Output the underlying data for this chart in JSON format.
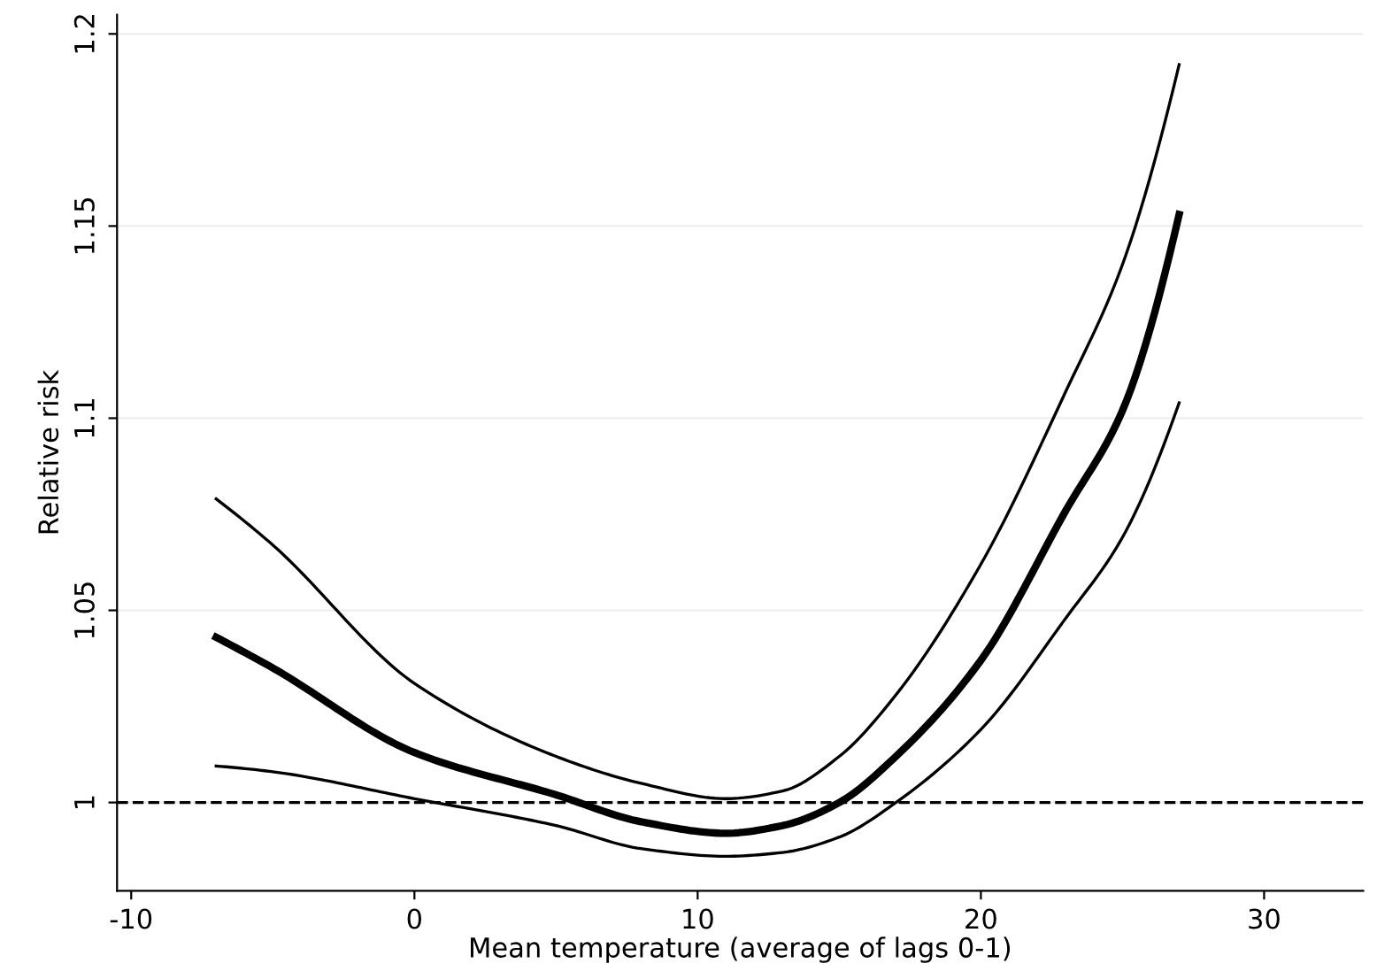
{
  "chart_data": {
    "type": "line",
    "xlabel": "Mean temperature (average of lags 0-1)",
    "ylabel": "Relative risk",
    "xlim": [
      -10.5,
      33.5
    ],
    "xticks": [
      -10,
      0,
      10,
      20,
      30
    ],
    "ylim": [
      0.977,
      1.205
    ],
    "yticks": [
      1,
      1.05,
      1.1,
      1.15,
      1.2
    ],
    "grid": "y",
    "line_style": "solid",
    "x": [
      -7,
      -5,
      0,
      5,
      8,
      11,
      13,
      15,
      17,
      20,
      23,
      25,
      27
    ],
    "series": [
      {
        "color": "#000000",
        "values": [
          1.079,
          1.067,
          1.031,
          1.012,
          1.005,
          1.001,
          1.003,
          1.012,
          1.028,
          1.062,
          1.107,
          1.14,
          1.192
        ]
      },
      {
        "color": "#000000",
        "values": [
          1.043,
          1.035,
          1.013,
          1.002,
          0.995,
          0.992,
          0.994,
          1.0,
          1.012,
          1.037,
          1.076,
          1.102,
          1.153
        ]
      },
      {
        "color": "#000000",
        "values": [
          1.0095,
          1.008,
          1.001,
          0.994,
          0.988,
          0.986,
          0.987,
          0.991,
          1.0,
          1.019,
          1.048,
          1.069,
          1.104
        ]
      }
    ],
    "ref_lines": [
      {
        "axis": "y",
        "value": 1,
        "line_style": "dashed",
        "color": "#000000"
      }
    ]
  }
}
